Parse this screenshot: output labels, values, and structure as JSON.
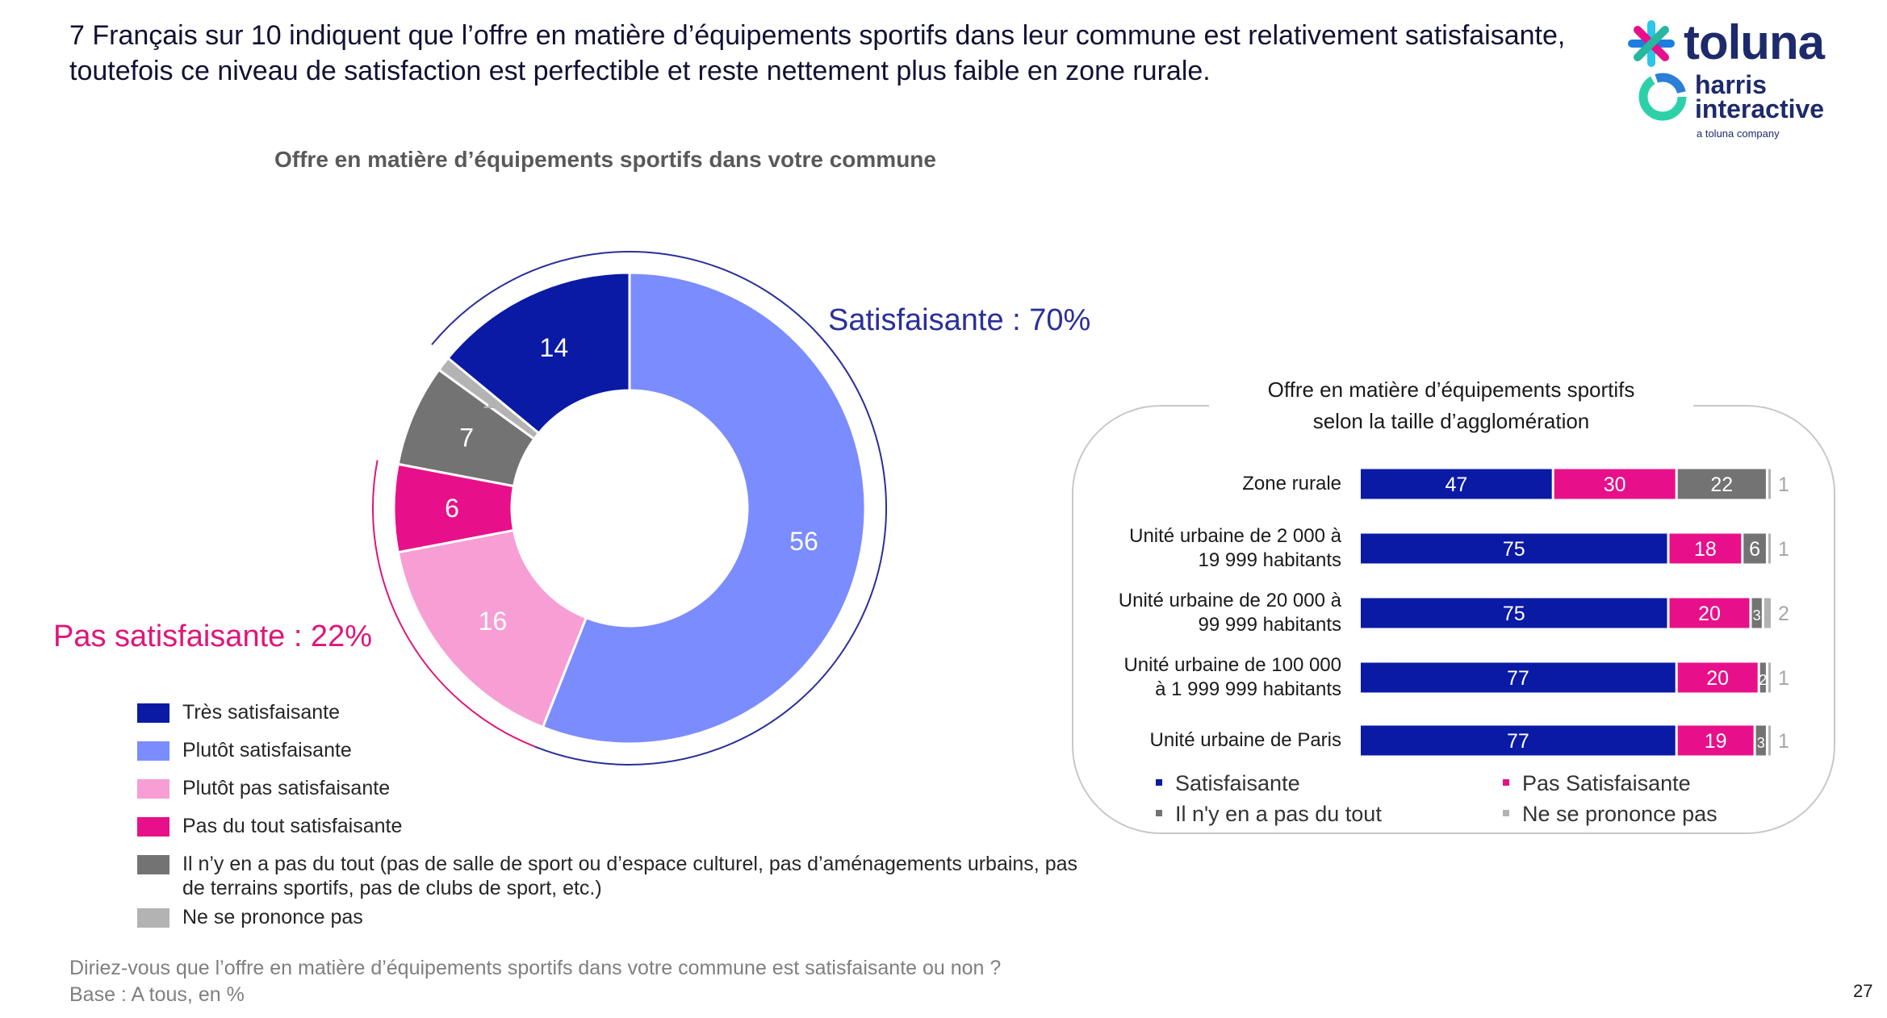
{
  "headline": "7 Français sur 10 indiquent que l’offre en matière d’équipements sportifs dans leur commune est relativement satisfaisante, toutefois ce niveau de satisfaction est perfectible et reste nettement plus faible en zone rurale.",
  "logo": {
    "brand": "toluna",
    "partner_line1": "harris",
    "partner_line2": "interactive",
    "tagline": "a toluna company"
  },
  "callouts": {
    "satisfaisante": "Satisfaisante : 70%",
    "pas_satisfaisante": "Pas satisfaisante : 22%"
  },
  "legend": [
    {
      "label": "Très satisfaisante",
      "color": "#0a1aa5"
    },
    {
      "label": "Plutôt satisfaisante",
      "color": "#7b8cff"
    },
    {
      "label": "Plutôt pas satisfaisante",
      "color": "#f79ed4"
    },
    {
      "label": "Pas du tout satisfaisante",
      "color": "#e8108a"
    },
    {
      "label": "Il n’y en a pas du tout (pas de salle de sport ou d’espace culturel, pas d’aménagements urbains, pas de terrains sportifs, pas de clubs de sport, etc.)",
      "color": "#737373"
    },
    {
      "label": "Ne se prononce pas",
      "color": "#b3b3b3"
    }
  ],
  "chart_data": [
    {
      "type": "pie",
      "title": "Offre en matière d’équipements sportifs dans votre commune",
      "unit": "%",
      "categories": [
        "Plutôt satisfaisante",
        "Plutôt pas satisfaisante",
        "Pas du tout satisfaisante",
        "Il n’y en a pas du tout (pas de salle de sport ou d’espace culturel, pas d’aménagements urbains, pas de terrains sportifs, pas de clubs de sport, etc.)",
        "Ne se prononce pas",
        "Très satisfaisante"
      ],
      "values": [
        56,
        16,
        6,
        7,
        1,
        14
      ],
      "data_labels": [
        "56",
        "16",
        "6",
        "7",
        "1",
        "14"
      ],
      "colors": [
        "#7b8cff",
        "#f79ed4",
        "#e8108a",
        "#737373",
        "#b3b3b3",
        "#0a1aa5"
      ],
      "label_colors": [
        "#ffffff",
        "#ffffff",
        "#ffffff",
        "#ffffff",
        "#b3b3b3",
        "#ffffff"
      ],
      "donut": true
    },
    {
      "type": "bar",
      "orientation": "horizontal",
      "stacked": true,
      "title_line1": "Offre en matière d’équipements sportifs",
      "title_line2": "selon la taille d’agglomération",
      "unit": "%",
      "categories": [
        [
          "Zone rurale"
        ],
        [
          "Unité urbaine de 2 000 à",
          "19 999 habitants"
        ],
        [
          "Unité urbaine de 20 000 à",
          "99 999 habitants"
        ],
        [
          "Unité urbaine de 100 000",
          "à 1 999 999 habitants"
        ],
        [
          "Unité urbaine de Paris"
        ]
      ],
      "series": [
        {
          "name": "Satisfaisante",
          "color": "#0a1aa5",
          "values": [
            47,
            75,
            75,
            77,
            77
          ],
          "labels": [
            "47",
            "75",
            "75",
            "77",
            "77"
          ]
        },
        {
          "name": "Pas Satisfaisante",
          "color": "#e8108a",
          "values": [
            30,
            18,
            20,
            20,
            19
          ],
          "labels": [
            "30",
            "18",
            "20",
            "20",
            "19"
          ]
        },
        {
          "name": "Il n'y en a pas du tout",
          "color": "#737373",
          "values": [
            22,
            6,
            3,
            2,
            3
          ],
          "labels": [
            "22",
            "6",
            "3",
            "2",
            "3"
          ]
        },
        {
          "name": "Ne se prononce pas",
          "color": "#b3b3b3",
          "values": [
            1,
            1,
            2,
            1,
            1
          ],
          "labels": [
            "1",
            "1",
            "2",
            "1",
            "1"
          ]
        }
      ]
    }
  ],
  "footer": {
    "question": "Diriez-vous que l’offre en matière d’équipements sportifs dans votre commune est satisfaisante ou non ?",
    "base": "Base : A tous, en %"
  },
  "page_number": "27"
}
